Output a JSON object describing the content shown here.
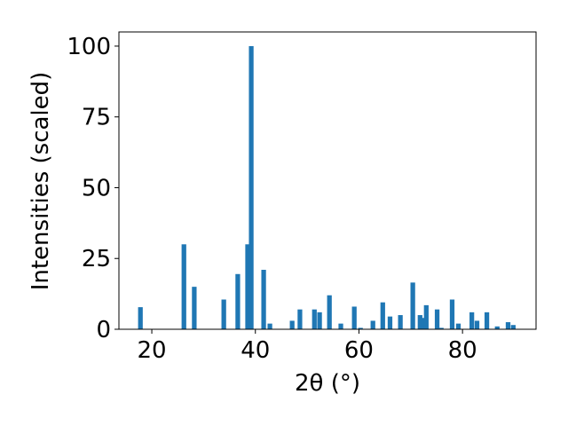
{
  "chart_data": {
    "type": "bar",
    "xlabel": "2θ (°)",
    "ylabel": "Intensities (scaled)",
    "color": "#1f77b4",
    "bar_width": 0.9,
    "x": [
      17.8,
      26.2,
      28.2,
      33.9,
      36.6,
      38.5,
      39.2,
      41.6,
      42.8,
      47.1,
      48.6,
      51.4,
      52.4,
      54.3,
      56.5,
      59.1,
      60.3,
      62.7,
      64.6,
      66.0,
      68.0,
      70.4,
      71.8,
      72.5,
      73.0,
      75.1,
      75.9,
      78.0,
      79.2,
      81.8,
      82.8,
      84.7,
      86.7,
      88.8,
      89.8
    ],
    "values": [
      7.8,
      30,
      15,
      10.5,
      19.5,
      30,
      100,
      21,
      2,
      3,
      7,
      7,
      6,
      12,
      2,
      8,
      0.5,
      3,
      9.5,
      4.5,
      5,
      16.5,
      5,
      4,
      8.5,
      7,
      0.5,
      10.5,
      2,
      6,
      3,
      6,
      1,
      2.5,
      1.5
    ],
    "xlim": [
      13.65,
      94.2
    ],
    "ylim": [
      0,
      105
    ],
    "xticks": [
      20,
      40,
      60,
      80
    ],
    "yticks": [
      0,
      25,
      50,
      75,
      100
    ]
  }
}
